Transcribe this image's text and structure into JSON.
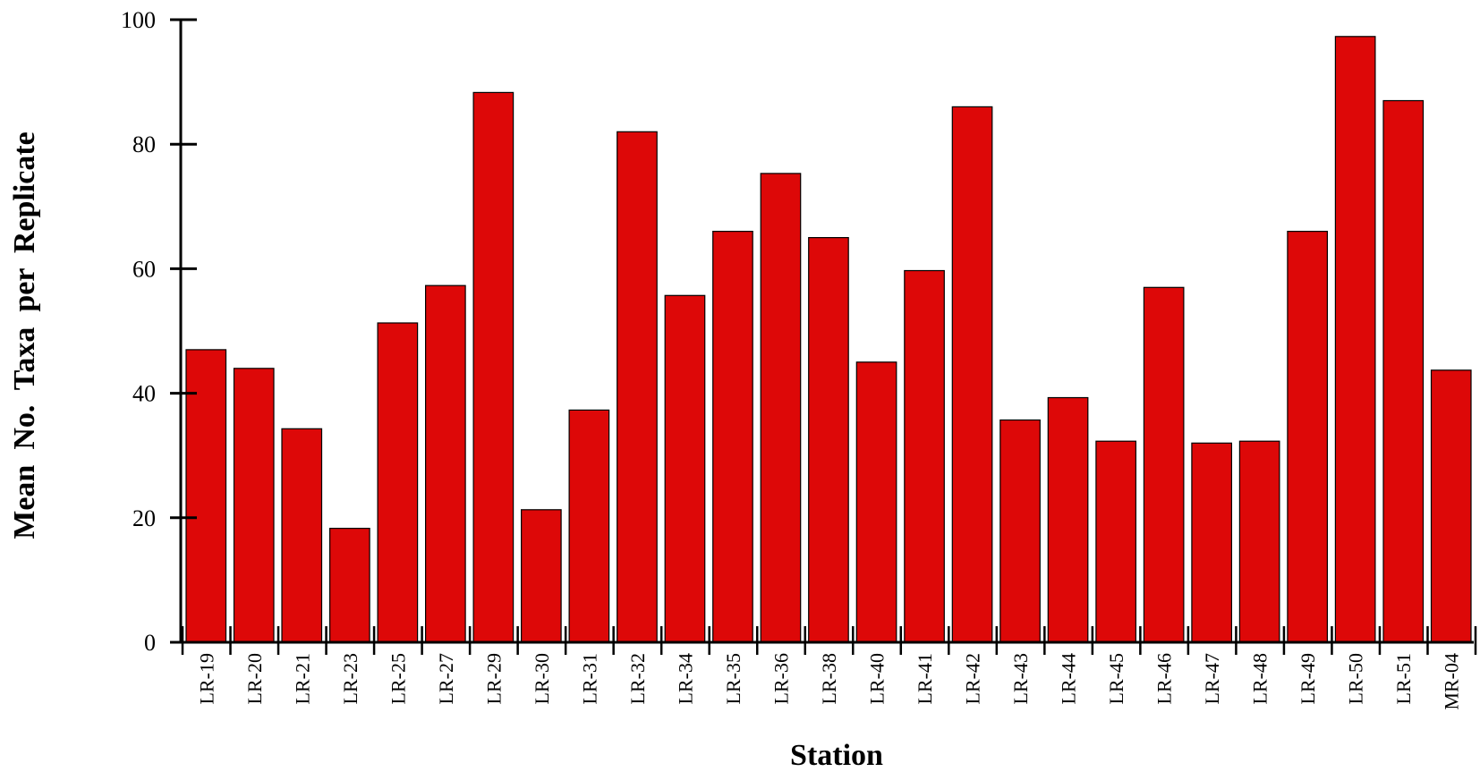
{
  "chart_data": {
    "type": "bar",
    "title": "",
    "xlabel": "Station",
    "ylabel": "Mean  No.  Taxa  per  Replicate",
    "ylim": [
      0,
      100
    ],
    "yticks": [
      0,
      20,
      40,
      60,
      80,
      100
    ],
    "grid": false,
    "bar_color": "#dd0808",
    "categories": [
      "LR-19",
      "LR-20",
      "LR-21",
      "LR-23",
      "LR-25",
      "LR-27",
      "LR-29",
      "LR-30",
      "LR-31",
      "LR-32",
      "LR-34",
      "LR-35",
      "LR-36",
      "LR-38",
      "LR-40",
      "LR-41",
      "LR-42",
      "LR-43",
      "LR-44",
      "LR-45",
      "LR-46",
      "LR-47",
      "LR-48",
      "LR-49",
      "LR-50",
      "LR-51",
      "MR-04"
    ],
    "values": [
      47,
      44,
      34.3,
      18.3,
      51.3,
      57.3,
      88.3,
      21.3,
      37.3,
      82,
      55.7,
      66,
      75.3,
      65,
      45,
      59.7,
      86,
      35.7,
      39.3,
      32.3,
      57,
      32,
      32.3,
      66,
      97.3,
      87,
      43.7
    ]
  }
}
